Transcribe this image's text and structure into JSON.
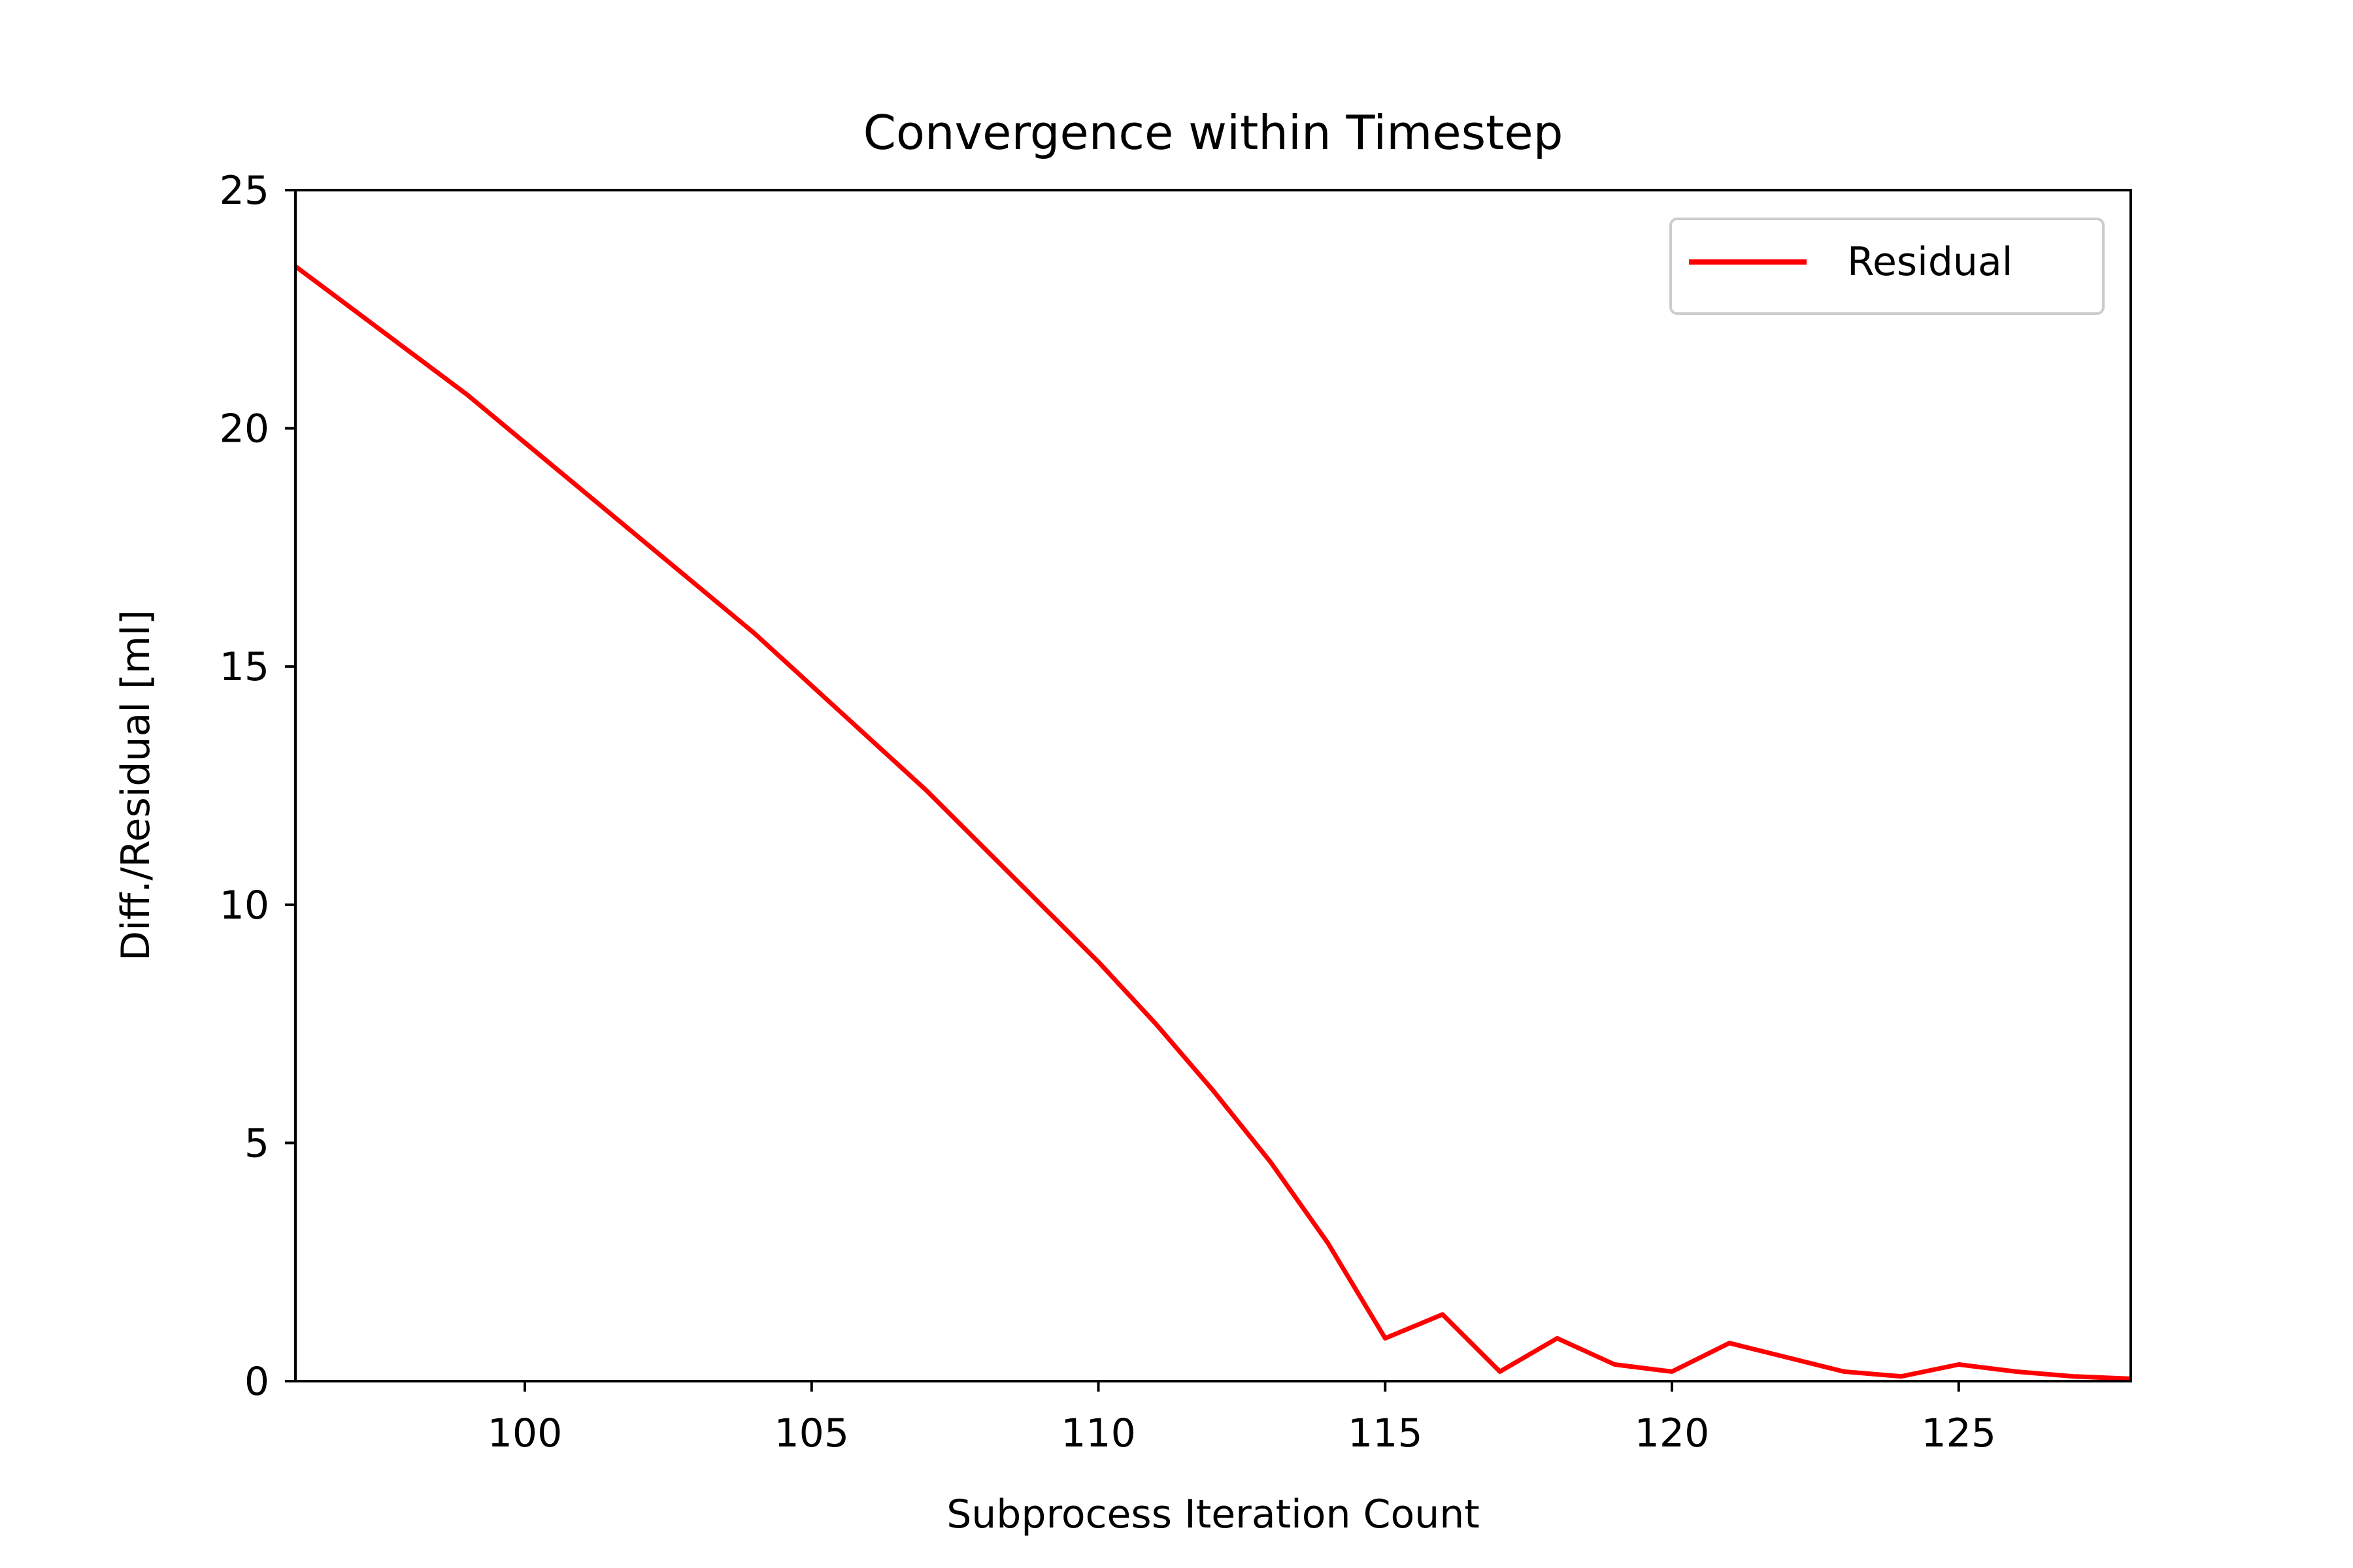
{
  "chart_data": {
    "type": "line",
    "title": "Convergence within Timestep",
    "xlabel": "Subprocess Iteration Count",
    "ylabel": "Diff./Residual [ml]",
    "xlim": [
      96,
      128
    ],
    "ylim": [
      0,
      25
    ],
    "x_ticks": [
      100,
      105,
      110,
      115,
      120,
      125
    ],
    "y_ticks": [
      0,
      5,
      10,
      15,
      20,
      25
    ],
    "grid": false,
    "legend_position": "upper right",
    "series": [
      {
        "name": "Residual",
        "color": "#ff0000",
        "x": [
          96,
          97,
          98,
          99,
          100,
          101,
          102,
          103,
          104,
          105,
          106,
          107,
          108,
          109,
          110,
          111,
          112,
          113,
          114,
          115,
          116,
          117,
          118,
          119,
          120,
          121,
          122,
          123,
          124,
          125,
          126,
          127,
          128
        ],
        "y": [
          23.4,
          22.5,
          21.6,
          20.7,
          19.7,
          18.7,
          17.7,
          16.7,
          15.7,
          14.6,
          13.5,
          12.4,
          11.2,
          10.0,
          8.8,
          7.5,
          6.1,
          4.6,
          2.9,
          0.9,
          1.4,
          0.2,
          0.9,
          0.35,
          0.2,
          0.8,
          0.5,
          0.2,
          0.1,
          0.35,
          0.2,
          0.1,
          0.05
        ]
      }
    ]
  }
}
